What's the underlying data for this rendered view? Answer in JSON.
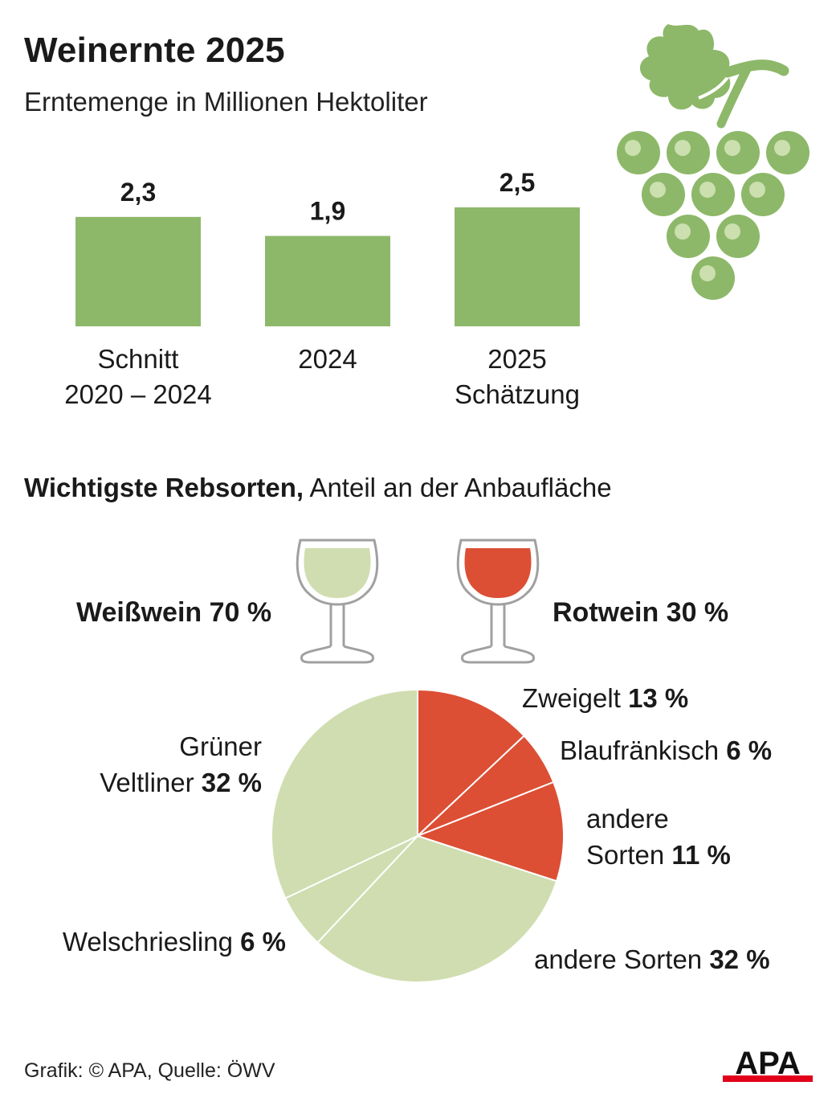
{
  "title": "Weinernte 2025",
  "subtitle": "Erntemenge in Millionen Hektoliter",
  "colors": {
    "bar_green": "#8db869",
    "light_green": "#cfddb0",
    "red": "#dc4f35",
    "grape_highlight": "#cbe0ae",
    "glass_outline": "#a0a0a0",
    "text": "#1a1a1a"
  },
  "chart_data": [
    {
      "type": "bar",
      "title": "Erntemenge in Millionen Hektoliter",
      "categories": [
        {
          "line1": "Schnitt",
          "line2": "2020 – 2024"
        },
        {
          "line1": "2024",
          "line2": ""
        },
        {
          "line1": "2025",
          "line2": "Schätzung"
        }
      ],
      "values": [
        2.3,
        1.9,
        2.5
      ],
      "value_labels": [
        "2,3",
        "1,9",
        "2,5"
      ],
      "unit": "Mio. hl",
      "ylim": [
        0,
        2.5
      ]
    },
    {
      "type": "pie",
      "title": "Wichtigste Rebsorten, Anteil an der Anbaufläche",
      "slices": [
        {
          "name": "Zweigelt",
          "value": 13,
          "label": "13 %",
          "color": "#dc4f35"
        },
        {
          "name": "Blaufränkisch",
          "value": 6,
          "label": "6 %",
          "color": "#dc4f35"
        },
        {
          "name": "andere Sorten",
          "value": 11,
          "label": "11 %",
          "color": "#dc4f35"
        },
        {
          "name": "andere Sorten",
          "value": 32,
          "label": "32 %",
          "color": "#cfddb0"
        },
        {
          "name": "Welschriesling",
          "value": 6,
          "label": "6 %",
          "color": "#cfddb0"
        },
        {
          "name": "Grüner Veltliner",
          "value": 32,
          "label": "32 %",
          "color": "#cfddb0"
        }
      ],
      "slice_label_lines": [
        [
          "Zweigelt "
        ],
        [
          "Blaufränkisch "
        ],
        [
          "andere",
          "Sorten "
        ],
        [
          "andere Sorten "
        ],
        [
          "Welschriesling "
        ],
        [
          "Grüner",
          "Veltliner "
        ]
      ]
    }
  ],
  "section2": {
    "bold": "Wichtigste Rebsorten,",
    "rest": " Anteil an der Anbaufläche"
  },
  "white_wine": {
    "label": "Weißwein 70 %",
    "value": 70
  },
  "red_wine": {
    "label": "Rotwein 30 %",
    "value": 30
  },
  "footer": "Grafik: © APA, Quelle: ÖWV",
  "logo": "APA"
}
